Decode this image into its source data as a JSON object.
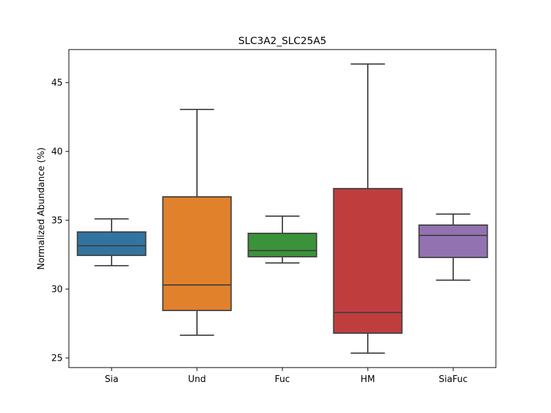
{
  "chart_data": {
    "type": "box",
    "title": "SLC3A2_SLC25A5",
    "xlabel": "",
    "ylabel": "Normalized Abundance (%)",
    "ylim": [
      24.3,
      47.4
    ],
    "yticks": [
      25,
      30,
      35,
      40,
      45
    ],
    "legend": "none",
    "grid": false,
    "categories": [
      "Sia",
      "Und",
      "Fuc",
      "HM",
      "SiaFuc"
    ],
    "boxes": [
      {
        "category": "Sia",
        "whisker_low": 31.7,
        "q1": 32.45,
        "median": 33.15,
        "q3": 34.15,
        "whisker_high": 35.1,
        "color": "#3274a1"
      },
      {
        "category": "Und",
        "whisker_low": 26.65,
        "q1": 28.45,
        "median": 30.3,
        "q3": 36.7,
        "whisker_high": 43.05,
        "color": "#e1812c"
      },
      {
        "category": "Fuc",
        "whisker_low": 31.9,
        "q1": 32.35,
        "median": 32.8,
        "q3": 34.05,
        "whisker_high": 35.3,
        "color": "#3a923a"
      },
      {
        "category": "HM",
        "whisker_low": 25.35,
        "q1": 26.8,
        "median": 28.3,
        "q3": 37.3,
        "whisker_high": 46.35,
        "color": "#c03d3e"
      },
      {
        "category": "SiaFuc",
        "whisker_low": 30.65,
        "q1": 32.3,
        "median": 33.9,
        "q3": 34.65,
        "whisker_high": 35.45,
        "color": "#9372b2"
      }
    ]
  }
}
